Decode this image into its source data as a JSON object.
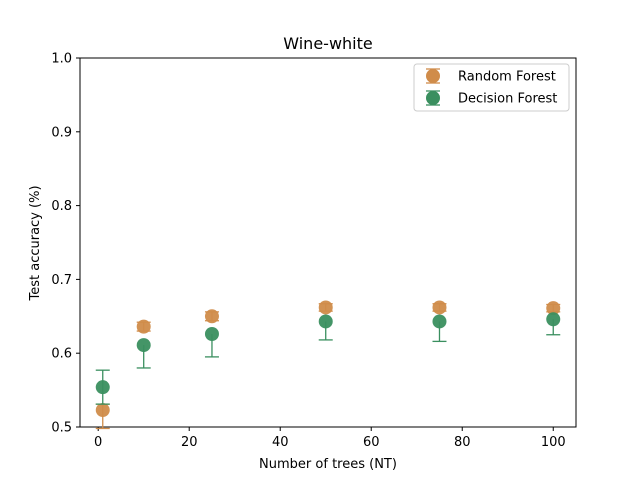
{
  "chart_data": {
    "type": "scatter",
    "title": "Wine-white",
    "xlabel": "Number of trees (NT)",
    "ylabel": "Test accuracy (%)",
    "xlim": [
      -4.0,
      105.0
    ],
    "ylim": [
      0.5,
      1.0
    ],
    "x_ticks": [
      0,
      20,
      40,
      60,
      80,
      100
    ],
    "y_ticks": [
      0.5,
      0.6,
      0.7,
      0.8,
      0.9,
      1.0
    ],
    "y_tick_labels": [
      "0.5",
      "0.6",
      "0.7",
      "0.8",
      "0.9",
      "1.0"
    ],
    "grid": false,
    "legend_position": "top-right",
    "series": [
      {
        "name": "Random Forest",
        "color": "#d08c4a",
        "x": [
          1,
          10,
          25,
          50,
          75,
          100
        ],
        "y": [
          0.523,
          0.636,
          0.65,
          0.662,
          0.662,
          0.661
        ],
        "err_low": [
          0.025,
          0.006,
          0.006,
          0.005,
          0.005,
          0.005
        ],
        "err_high": [
          0.008,
          0.006,
          0.006,
          0.005,
          0.005,
          0.005
        ]
      },
      {
        "name": "Decision Forest",
        "color": "#3a8f5f",
        "x": [
          1,
          10,
          25,
          50,
          75,
          100
        ],
        "y": [
          0.554,
          0.611,
          0.626,
          0.643,
          0.643,
          0.646
        ],
        "err_low": [
          0.023,
          0.031,
          0.031,
          0.025,
          0.027,
          0.021
        ],
        "err_high": [
          0.023,
          0.0,
          0.0,
          0.0,
          0.0,
          0.0
        ]
      }
    ]
  }
}
